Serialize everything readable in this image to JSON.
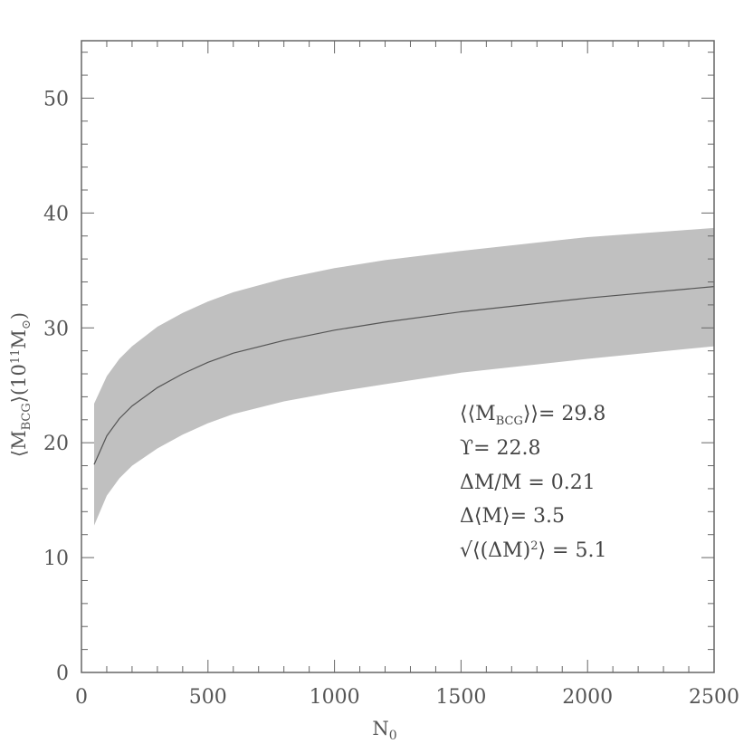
{
  "chart_data": {
    "type": "area",
    "xlabel": "N",
    "xlabel_sub": "0",
    "ylabel": "⟨M",
    "ylabel_sub": "BCG",
    "ylabel_rest": "⟩(10",
    "ylabel_sup": "11",
    "ylabel_end": "M",
    "ylabel_end_sub": "⊙",
    "ylabel_close": ")",
    "xlim": [
      0,
      2500
    ],
    "ylim": [
      0,
      55
    ],
    "xticks": [
      0,
      500,
      1000,
      1500,
      2000,
      2500
    ],
    "yticks": [
      0,
      10,
      20,
      30,
      40,
      50
    ],
    "x_minor_step": 100,
    "y_minor_step": 2,
    "grid": false,
    "colors": {
      "band": "#c0c0c0",
      "line": "#555555",
      "axes": "#666666"
    },
    "series": [
      {
        "role": "mean",
        "x": [
          50,
          100,
          150,
          200,
          300,
          400,
          500,
          600,
          800,
          1000,
          1200,
          1500,
          2000,
          2500
        ],
        "y": [
          18.1,
          20.6,
          22.1,
          23.2,
          24.8,
          26.0,
          27.0,
          27.8,
          28.9,
          29.8,
          30.5,
          31.4,
          32.6,
          33.6
        ]
      },
      {
        "role": "band-upper",
        "x": [
          50,
          100,
          150,
          200,
          300,
          400,
          500,
          600,
          800,
          1000,
          1200,
          1500,
          2000,
          2500
        ],
        "y": [
          23.4,
          25.8,
          27.3,
          28.4,
          30.1,
          31.3,
          32.3,
          33.1,
          34.3,
          35.2,
          35.9,
          36.7,
          37.9,
          38.7
        ]
      },
      {
        "role": "band-lower",
        "x": [
          50,
          100,
          150,
          200,
          300,
          400,
          500,
          600,
          800,
          1000,
          1200,
          1500,
          2000,
          2500
        ],
        "y": [
          12.8,
          15.4,
          16.9,
          18.0,
          19.5,
          20.7,
          21.7,
          22.5,
          23.6,
          24.4,
          25.1,
          26.1,
          27.3,
          28.4
        ]
      }
    ],
    "annotations": {
      "line1": {
        "pre": "⟨⟨M",
        "sub": "BCG",
        "post": "⟩⟩=  29.8"
      },
      "line2": "ϒ=  22.8",
      "line3": "ΔM/M  =  0.21",
      "line4": "Δ⟨M⟩=  3.5",
      "line5": {
        "pre": "√⟨(ΔM)",
        "sup": "2",
        "post": "⟩  =  5.1"
      }
    }
  }
}
